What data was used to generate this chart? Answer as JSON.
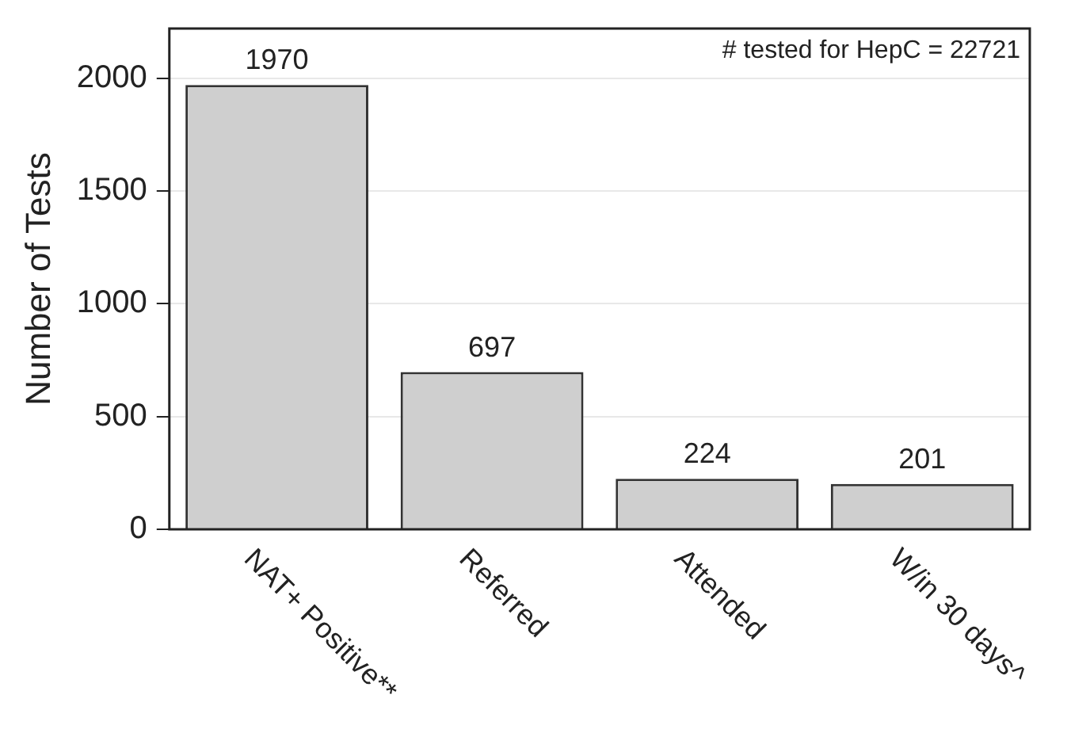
{
  "chart_data": {
    "type": "bar",
    "ylabel": "Number of Tests",
    "categories": [
      "NAT+ Positive**",
      "Referred",
      "Attended",
      "W/in 30 days^"
    ],
    "values": [
      1970,
      697,
      224,
      201
    ],
    "color": "#cfcfcf",
    "ylim": [
      0,
      2220
    ],
    "yticks": [
      0,
      500,
      1000,
      1500,
      2000
    ],
    "grid": "y",
    "data_labels": true,
    "legend": false,
    "annotations": [
      "# tested for HepC = 22721"
    ]
  }
}
